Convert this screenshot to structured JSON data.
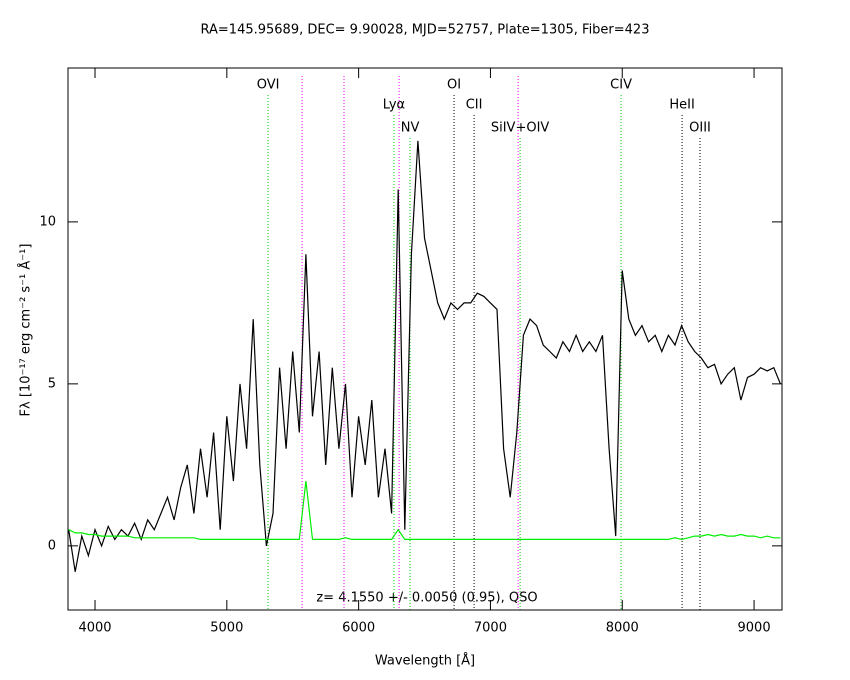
{
  "chart_data": {
    "type": "line",
    "title": "RA=145.95689, DEC= 9.90028, MJD=52757, Plate=1305, Fiber=423",
    "xlabel": "Wavelength [Å]",
    "ylabel": "Fλ [10⁻¹⁷ erg cm⁻² s⁻¹ Å⁻¹]",
    "note": "z= 4.1550 +/- 0.0050 (0.95), QSO",
    "xlim": [
      3795,
      9212
    ],
    "ylim": [
      -1.98,
      14.75
    ],
    "xticks": [
      4000,
      5000,
      6000,
      7000,
      8000,
      9000
    ],
    "yticks": [
      0,
      5,
      10
    ],
    "x": [
      3800,
      3850,
      3900,
      3950,
      4000,
      4050,
      4100,
      4150,
      4200,
      4250,
      4300,
      4350,
      4400,
      4450,
      4500,
      4550,
      4600,
      4650,
      4700,
      4750,
      4800,
      4850,
      4900,
      4950,
      5000,
      5050,
      5100,
      5150,
      5200,
      5250,
      5300,
      5350,
      5400,
      5450,
      5500,
      5550,
      5600,
      5650,
      5700,
      5750,
      5800,
      5850,
      5900,
      5950,
      6000,
      6050,
      6100,
      6150,
      6200,
      6250,
      6300,
      6350,
      6400,
      6450,
      6500,
      6550,
      6600,
      6650,
      6700,
      6750,
      6800,
      6850,
      6900,
      6950,
      7000,
      7050,
      7100,
      7150,
      7200,
      7250,
      7300,
      7350,
      7400,
      7450,
      7500,
      7550,
      7600,
      7650,
      7700,
      7750,
      7800,
      7850,
      7900,
      7950,
      8000,
      8050,
      8100,
      8150,
      8200,
      8250,
      8300,
      8350,
      8400,
      8450,
      8500,
      8550,
      8600,
      8650,
      8700,
      8750,
      8800,
      8850,
      8900,
      8950,
      9000,
      9050,
      9100,
      9150,
      9200
    ],
    "series": [
      {
        "color": "#000000",
        "values": [
          0.5,
          -0.8,
          0.3,
          -0.3,
          0.5,
          0.0,
          0.6,
          0.2,
          0.5,
          0.3,
          0.7,
          0.2,
          0.8,
          0.5,
          1.0,
          1.5,
          0.8,
          1.8,
          2.5,
          1.0,
          3.0,
          1.5,
          3.5,
          0.5,
          4.0,
          2.0,
          5.0,
          3.0,
          7.0,
          2.5,
          0.0,
          1.0,
          5.5,
          3.0,
          6.0,
          3.5,
          9.0,
          4.0,
          6.0,
          2.5,
          5.5,
          3.0,
          5.0,
          1.5,
          4.0,
          2.5,
          4.5,
          1.5,
          3.0,
          1.0,
          11.0,
          0.5,
          9.0,
          12.5,
          9.5,
          8.5,
          7.5,
          7.0,
          7.5,
          7.3,
          7.5,
          7.5,
          7.8,
          7.7,
          7.5,
          7.3,
          3.0,
          1.5,
          3.5,
          6.5,
          7.0,
          6.8,
          6.2,
          6.0,
          5.8,
          6.3,
          6.0,
          6.5,
          6.0,
          6.3,
          6.0,
          6.5,
          3.0,
          0.3,
          8.5,
          7.0,
          6.5,
          6.8,
          6.3,
          6.5,
          6.0,
          6.5,
          6.2,
          6.8,
          6.3,
          6.0,
          5.8,
          5.5,
          5.6,
          5.0,
          5.3,
          5.5,
          4.5,
          5.2,
          5.3,
          5.5,
          5.4,
          5.5,
          5.0
        ]
      },
      {
        "color": "#00ee00",
        "values": [
          0.5,
          0.4,
          0.4,
          0.35,
          0.35,
          0.3,
          0.3,
          0.3,
          0.3,
          0.3,
          0.25,
          0.25,
          0.25,
          0.25,
          0.25,
          0.25,
          0.25,
          0.25,
          0.25,
          0.25,
          0.2,
          0.2,
          0.2,
          0.2,
          0.2,
          0.2,
          0.2,
          0.2,
          0.2,
          0.2,
          0.2,
          0.2,
          0.2,
          0.2,
          0.2,
          0.2,
          2.0,
          0.2,
          0.2,
          0.2,
          0.2,
          0.2,
          0.25,
          0.2,
          0.2,
          0.2,
          0.2,
          0.2,
          0.2,
          0.2,
          0.5,
          0.2,
          0.2,
          0.2,
          0.2,
          0.2,
          0.2,
          0.2,
          0.2,
          0.2,
          0.2,
          0.2,
          0.2,
          0.2,
          0.2,
          0.2,
          0.2,
          0.2,
          0.2,
          0.2,
          0.2,
          0.2,
          0.2,
          0.2,
          0.2,
          0.2,
          0.2,
          0.2,
          0.2,
          0.2,
          0.2,
          0.2,
          0.2,
          0.2,
          0.2,
          0.2,
          0.2,
          0.2,
          0.2,
          0.2,
          0.2,
          0.2,
          0.25,
          0.2,
          0.25,
          0.3,
          0.3,
          0.35,
          0.3,
          0.35,
          0.3,
          0.3,
          0.35,
          0.3,
          0.3,
          0.25,
          0.3,
          0.25,
          0.25
        ]
      }
    ],
    "line_markers": [
      {
        "label": "OVI",
        "x": 5313,
        "color": "#00cc00"
      },
      {
        "label": "Lyα",
        "x": 6268,
        "color": "#00cc00"
      },
      {
        "label": "NV",
        "x": 6390,
        "color": "#00cc00"
      },
      {
        "label": "OI",
        "x": 6724,
        "color": "#000000"
      },
      {
        "label": "CII",
        "x": 6876,
        "color": "#000000"
      },
      {
        "label": "SiIV+OIV",
        "x": 7225,
        "color": "#00cc00"
      },
      {
        "label": "CIV",
        "x": 7991,
        "color": "#00cc00"
      },
      {
        "label": "HeII",
        "x": 8454,
        "color": "#000000"
      },
      {
        "label": "OIII",
        "x": 8590,
        "color": "#000000"
      }
    ],
    "sky_lines": [
      {
        "x": 5571,
        "color": "#ff00ff"
      },
      {
        "x": 5889,
        "color": "#ff00ff"
      },
      {
        "x": 6307,
        "color": "#ff00ff"
      },
      {
        "x": 7210,
        "color": "#ff00ff"
      }
    ]
  }
}
